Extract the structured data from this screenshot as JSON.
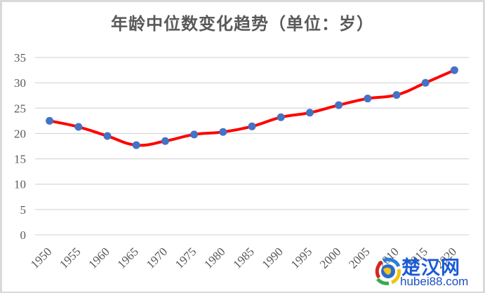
{
  "title": "年龄中位数变化趋势（单位：岁）",
  "colors": {
    "line": "#ff0000",
    "marker": "#4472c4",
    "grid": "#d9d9d9",
    "text": "#595959"
  },
  "watermark": {
    "cn": "楚汉网",
    "en": "hubei88.com"
  },
  "chart_data": {
    "type": "line",
    "title": "年龄中位数变化趋势（单位：岁）",
    "xlabel": "",
    "ylabel": "",
    "categories": [
      "1950",
      "1955",
      "1960",
      "1965",
      "1970",
      "1975",
      "1980",
      "1985",
      "1990",
      "1995",
      "2000",
      "2005",
      "2010",
      "2015",
      "2020"
    ],
    "series": [
      {
        "name": "年龄中位数",
        "values": [
          22.5,
          21.3,
          19.5,
          17.7,
          18.5,
          19.8,
          20.3,
          21.4,
          23.2,
          24.1,
          25.6,
          26.9,
          27.6,
          30.0,
          32.5
        ]
      }
    ],
    "ylim": [
      0,
      35
    ],
    "yticks": [
      "0",
      "5",
      "10",
      "15",
      "20",
      "25",
      "30",
      "35"
    ],
    "grid": true,
    "legend": "none"
  }
}
